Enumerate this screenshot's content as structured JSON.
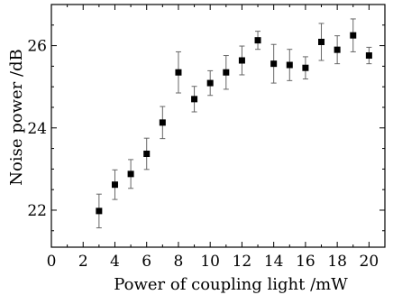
{
  "chart_data": {
    "type": "scatter",
    "title": "",
    "xlabel": "Power of coupling light /mW",
    "ylabel": "Noise power /dB",
    "xlim": [
      0,
      21
    ],
    "ylim": [
      21.1,
      27.0
    ],
    "xticks": [
      0,
      2,
      4,
      6,
      8,
      10,
      12,
      14,
      16,
      18,
      20
    ],
    "yticks": [
      22,
      24,
      26
    ],
    "grid": false,
    "legend": "none",
    "marker": "square",
    "error_bars": true,
    "series": [
      {
        "x": [
          3,
          4,
          5,
          6,
          7,
          8,
          9,
          10,
          11,
          12,
          13,
          14,
          15,
          16,
          17,
          18,
          19,
          20
        ],
        "y": [
          21.98,
          22.62,
          22.88,
          23.37,
          24.13,
          25.35,
          24.7,
          25.09,
          25.35,
          25.64,
          26.13,
          25.56,
          25.53,
          25.46,
          26.09,
          25.9,
          26.25,
          25.76
        ],
        "yerr": [
          0.41,
          0.36,
          0.35,
          0.38,
          0.39,
          0.5,
          0.31,
          0.3,
          0.41,
          0.35,
          0.22,
          0.47,
          0.38,
          0.27,
          0.45,
          0.34,
          0.4,
          0.2
        ]
      }
    ],
    "colors": {
      "marker": "#000000",
      "errorbar": "#666666",
      "axis": "#000000"
    }
  }
}
